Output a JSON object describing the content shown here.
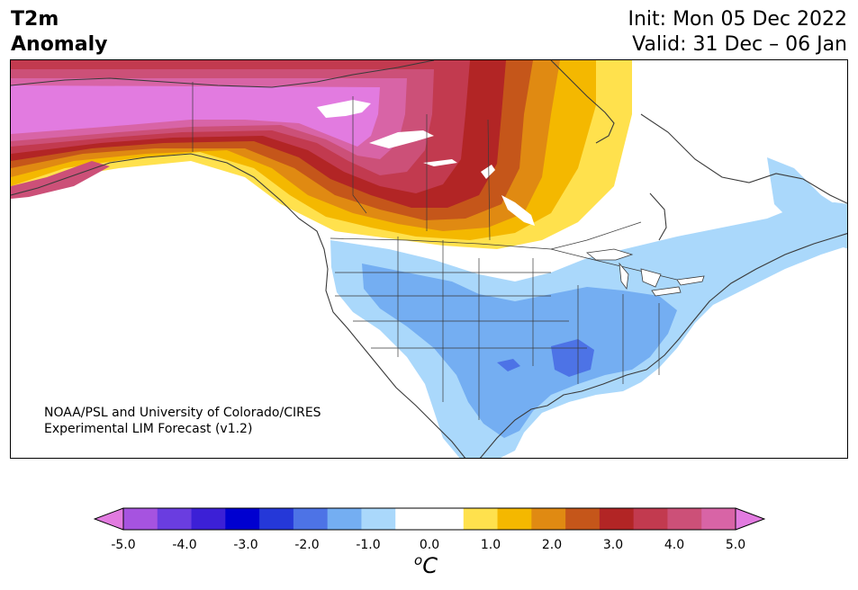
{
  "header": {
    "title_line1": "T2m",
    "title_line2": "Anomaly",
    "init": "Init: Mon 05 Dec 2022",
    "valid": "Valid: 31 Dec – 06 Jan"
  },
  "credit": {
    "line1": "NOAA/PSL and University of Colorado/CIRES",
    "line2": "Experimental LIM Forecast (v1.2)"
  },
  "colorbar": {
    "colors": [
      "#e27be0",
      "#a653e0",
      "#6a3de0",
      "#3c20d6",
      "#0000d0",
      "#2538d8",
      "#4d73e6",
      "#74aef2",
      "#aad8fb",
      "#ffffff",
      "#ffffff",
      "#ffe14d",
      "#f4b800",
      "#e08a12",
      "#c5561a",
      "#b22525",
      "#c23a4f",
      "#cc5078",
      "#d864a6",
      "#e27be0"
    ],
    "ticks": [
      "-5.0",
      "-4.0",
      "-3.0",
      "-2.0",
      "-1.0",
      "0.0",
      "1.0",
      "2.0",
      "3.0",
      "4.0",
      "5.0"
    ],
    "unit_sup": "o",
    "unit": "C"
  },
  "map": {
    "anomaly_colors": {
      "land": "#ffffff",
      "coast": "#3a3a3a",
      "pink": "#e27be0",
      "magenta": "#d864a6",
      "rose": "#cc5078",
      "crimson": "#c23a4f",
      "red": "#b22525",
      "rust": "#c5561a",
      "orange": "#e08a12",
      "gold": "#f4b800",
      "yellow": "#ffe14d",
      "light_blue": "#aad8fb",
      "mid_blue": "#74aef2",
      "blue": "#4d73e6",
      "deep_blue": "#2538d8"
    }
  }
}
